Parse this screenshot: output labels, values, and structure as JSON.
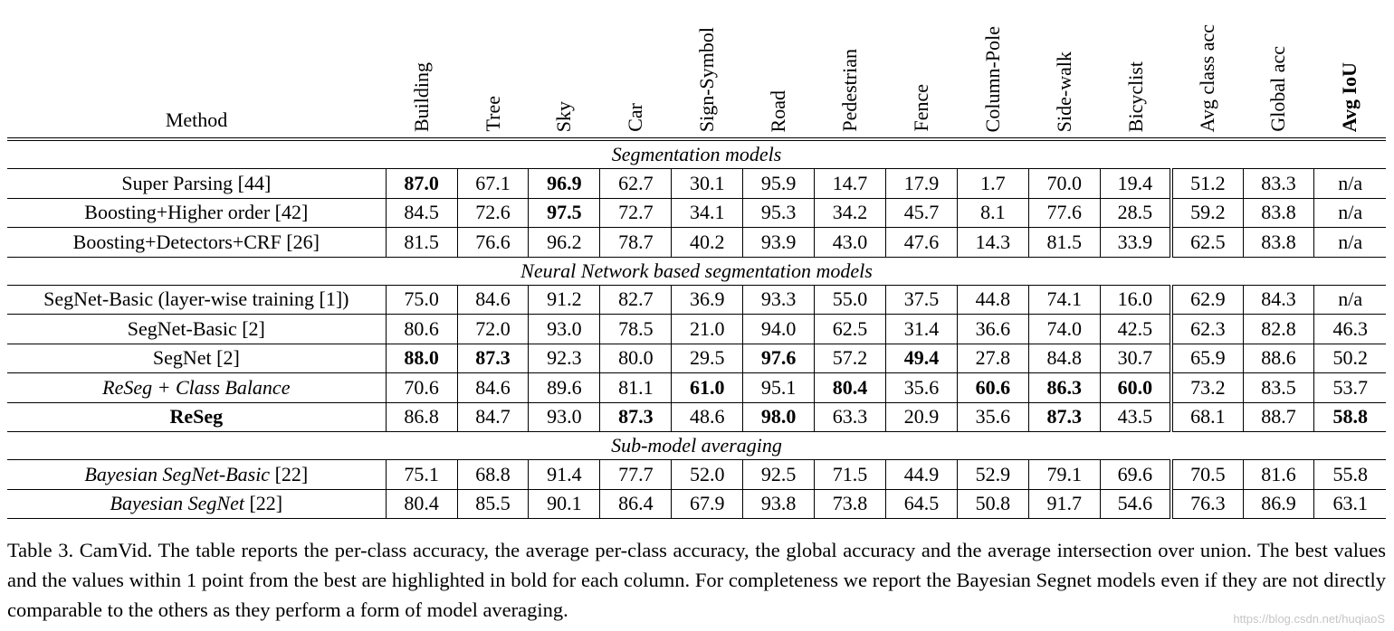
{
  "table": {
    "method_header": "Method",
    "columns": [
      "Building",
      "Tree",
      "Sky",
      "Car",
      "Sign-Symbol",
      "Road",
      "Pedestrian",
      "Fence",
      "Column-Pole",
      "Side-walk",
      "Bicyclist",
      "Avg class acc",
      "Global acc",
      "Avg IoU"
    ],
    "sections": [
      {
        "title": "Segmentation models",
        "rows": [
          {
            "method": "Super Parsing [44]",
            "values": [
              "87.0",
              "67.1",
              "96.9",
              "62.7",
              "30.1",
              "95.9",
              "14.7",
              "17.9",
              "1.7",
              "70.0",
              "19.4",
              "51.2",
              "83.3",
              "n/a"
            ],
            "bold": [
              0,
              2
            ]
          },
          {
            "method": "Boosting+Higher order [42]",
            "values": [
              "84.5",
              "72.6",
              "97.5",
              "72.7",
              "34.1",
              "95.3",
              "34.2",
              "45.7",
              "8.1",
              "77.6",
              "28.5",
              "59.2",
              "83.8",
              "n/a"
            ],
            "bold": [
              2
            ]
          },
          {
            "method": "Boosting+Detectors+CRF [26]",
            "values": [
              "81.5",
              "76.6",
              "96.2",
              "78.7",
              "40.2",
              "93.9",
              "43.0",
              "47.6",
              "14.3",
              "81.5",
              "33.9",
              "62.5",
              "83.8",
              "n/a"
            ],
            "bold": []
          }
        ]
      },
      {
        "title": "Neural Network based segmentation models",
        "rows": [
          {
            "method": "SegNet-Basic (layer-wise training [1])",
            "values": [
              "75.0",
              "84.6",
              "91.2",
              "82.7",
              "36.9",
              "93.3",
              "55.0",
              "37.5",
              "44.8",
              "74.1",
              "16.0",
              "62.9",
              "84.3",
              "n/a"
            ],
            "bold": []
          },
          {
            "method": "SegNet-Basic [2]",
            "values": [
              "80.6",
              "72.0",
              "93.0",
              "78.5",
              "21.0",
              "94.0",
              "62.5",
              "31.4",
              "36.6",
              "74.0",
              "42.5",
              "62.3",
              "82.8",
              "46.3"
            ],
            "bold": []
          },
          {
            "method": "SegNet [2]",
            "values": [
              "88.0",
              "87.3",
              "92.3",
              "80.0",
              "29.5",
              "97.6",
              "57.2",
              "49.4",
              "27.8",
              "84.8",
              "30.7",
              "65.9",
              "88.6",
              "50.2"
            ],
            "bold": [
              0,
              1,
              5,
              7
            ]
          },
          {
            "method": "ReSeg + Class Balance",
            "method_style": "italic",
            "values": [
              "70.6",
              "84.6",
              "89.6",
              "81.1",
              "61.0",
              "95.1",
              "80.4",
              "35.6",
              "60.6",
              "86.3",
              "60.0",
              "73.2",
              "83.5",
              "53.7"
            ],
            "bold": [
              4,
              6,
              8,
              9,
              10
            ]
          },
          {
            "method": "ReSeg",
            "method_style": "bold",
            "values": [
              "86.8",
              "84.7",
              "93.0",
              "87.3",
              "48.6",
              "98.0",
              "63.3",
              "20.9",
              "35.6",
              "87.3",
              "43.5",
              "68.1",
              "88.7",
              "58.8"
            ],
            "bold": [
              3,
              5,
              9,
              13
            ]
          }
        ]
      },
      {
        "title": "Sub-model averaging",
        "rows": [
          {
            "method_italic": "Bayesian SegNet-Basic",
            "method_rest": " [22]",
            "values": [
              "75.1",
              "68.8",
              "91.4",
              "77.7",
              "52.0",
              "92.5",
              "71.5",
              "44.9",
              "52.9",
              "79.1",
              "69.6",
              "70.5",
              "81.6",
              "55.8"
            ],
            "bold": []
          },
          {
            "method_italic": "Bayesian SegNet",
            "method_rest": " [22]",
            "values": [
              "80.4",
              "85.5",
              "90.1",
              "86.4",
              "67.9",
              "93.8",
              "73.8",
              "64.5",
              "50.8",
              "91.7",
              "54.6",
              "76.3",
              "86.9",
              "63.1"
            ],
            "bold": []
          }
        ]
      }
    ]
  },
  "caption": {
    "text": "Table 3. CamVid. The table reports the per-class accuracy, the average per-class accuracy, the global accuracy and the average intersection over union.  The best values and the values within 1 point from the best are highlighted in bold for each column.  For completeness we report the Bayesian Segnet models even if they are not directly comparable to the others as they perform a form of model averaging."
  },
  "watermark": "https://blog.csdn.net/huqiaoS"
}
